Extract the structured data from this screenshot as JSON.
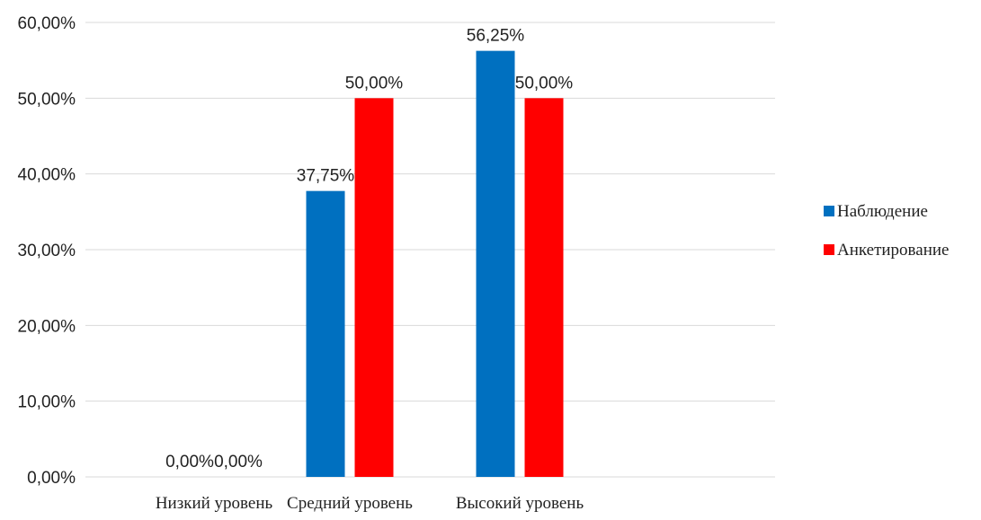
{
  "chart_data": {
    "type": "bar",
    "categories": [
      "Низкий уровень",
      "Средний уровень",
      "Высокий уровень"
    ],
    "series": [
      {
        "name": "Наблюдение",
        "values": [
          0,
          37.75,
          56.25
        ],
        "labels": [
          "0,00%",
          "37,75%",
          "56,25%"
        ],
        "color": "#0070C0"
      },
      {
        "name": "Анкетирование",
        "values": [
          0,
          50,
          50
        ],
        "labels": [
          "0,00%",
          "50,00%",
          "50,00%"
        ],
        "color": "#FF0000"
      }
    ],
    "ylim": [
      0,
      60
    ],
    "yticks": [
      0,
      10,
      20,
      30,
      40,
      50,
      60
    ],
    "ytick_labels": [
      "0,00%",
      "10,00%",
      "20,00%",
      "30,00%",
      "40,00%",
      "50,00%",
      "60,00%"
    ],
    "grid": true,
    "legend": "right",
    "gridline_color": "#D9D9D9",
    "title": "",
    "xlabel": "",
    "ylabel": ""
  }
}
